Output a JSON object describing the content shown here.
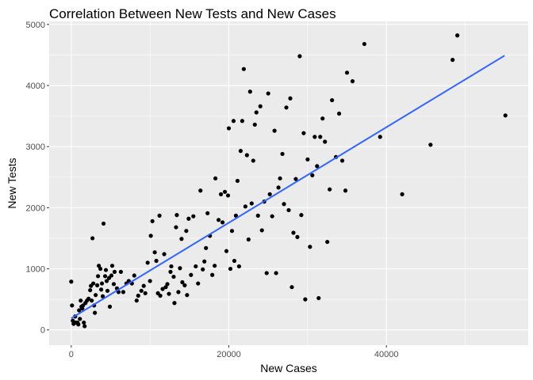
{
  "chart_data": {
    "type": "scatter",
    "title": "Correlation Between New Tests and New Cases",
    "xlabel": "New Cases",
    "ylabel": "New Tests",
    "xlim": [
      -2800,
      58000
    ],
    "ylim": [
      -250,
      5050
    ],
    "x_ticks": [
      0,
      20000,
      40000
    ],
    "x_tick_labels": [
      "0",
      "20000",
      "40000"
    ],
    "y_ticks": [
      0,
      1000,
      2000,
      3000,
      4000,
      5000
    ],
    "y_tick_labels": [
      "0",
      "1000",
      "2000",
      "3000",
      "4000",
      "5000"
    ],
    "background": "panel-grey",
    "grid": true,
    "colors": {
      "panel": "#ebebeb",
      "grid": "#ffffff",
      "points": "#000000",
      "trend": "#3366ff"
    },
    "trend_line": {
      "x": [
        0,
        55000
      ],
      "y": [
        190,
        4490
      ]
    },
    "points": [
      {
        "x": 0,
        "y": 790
      },
      {
        "x": 100,
        "y": 400
      },
      {
        "x": 200,
        "y": 150
      },
      {
        "x": 300,
        "y": 100
      },
      {
        "x": 500,
        "y": 220
      },
      {
        "x": 600,
        "y": 120
      },
      {
        "x": 800,
        "y": 120
      },
      {
        "x": 900,
        "y": 90
      },
      {
        "x": 1000,
        "y": 320
      },
      {
        "x": 1100,
        "y": 180
      },
      {
        "x": 1200,
        "y": 480
      },
      {
        "x": 1300,
        "y": 380
      },
      {
        "x": 1400,
        "y": 350
      },
      {
        "x": 1500,
        "y": 400
      },
      {
        "x": 1600,
        "y": 120
      },
      {
        "x": 1700,
        "y": 60
      },
      {
        "x": 1800,
        "y": 440
      },
      {
        "x": 2000,
        "y": 480
      },
      {
        "x": 2200,
        "y": 510
      },
      {
        "x": 2400,
        "y": 650
      },
      {
        "x": 2500,
        "y": 720
      },
      {
        "x": 2600,
        "y": 480
      },
      {
        "x": 2700,
        "y": 1500
      },
      {
        "x": 2800,
        "y": 760
      },
      {
        "x": 2900,
        "y": 400
      },
      {
        "x": 3000,
        "y": 280
      },
      {
        "x": 3100,
        "y": 570
      },
      {
        "x": 3300,
        "y": 730
      },
      {
        "x": 3400,
        "y": 880
      },
      {
        "x": 3500,
        "y": 1050
      },
      {
        "x": 3700,
        "y": 1000
      },
      {
        "x": 3800,
        "y": 660
      },
      {
        "x": 3900,
        "y": 760
      },
      {
        "x": 4000,
        "y": 550
      },
      {
        "x": 4100,
        "y": 1740
      },
      {
        "x": 4300,
        "y": 880
      },
      {
        "x": 4400,
        "y": 980
      },
      {
        "x": 4500,
        "y": 800
      },
      {
        "x": 4600,
        "y": 640
      },
      {
        "x": 4800,
        "y": 850
      },
      {
        "x": 4900,
        "y": 380
      },
      {
        "x": 5100,
        "y": 890
      },
      {
        "x": 5200,
        "y": 1050
      },
      {
        "x": 5400,
        "y": 750
      },
      {
        "x": 5500,
        "y": 950
      },
      {
        "x": 5800,
        "y": 680
      },
      {
        "x": 6000,
        "y": 620
      },
      {
        "x": 6300,
        "y": 950
      },
      {
        "x": 6600,
        "y": 620
      },
      {
        "x": 7000,
        "y": 760
      },
      {
        "x": 7300,
        "y": 800
      },
      {
        "x": 7700,
        "y": 760
      },
      {
        "x": 8000,
        "y": 890
      },
      {
        "x": 8300,
        "y": 480
      },
      {
        "x": 8500,
        "y": 560
      },
      {
        "x": 8900,
        "y": 640
      },
      {
        "x": 9200,
        "y": 720
      },
      {
        "x": 9400,
        "y": 600
      },
      {
        "x": 9700,
        "y": 1100
      },
      {
        "x": 10000,
        "y": 800
      },
      {
        "x": 10100,
        "y": 1540
      },
      {
        "x": 10300,
        "y": 1780
      },
      {
        "x": 10600,
        "y": 1270
      },
      {
        "x": 10800,
        "y": 1130
      },
      {
        "x": 11000,
        "y": 600
      },
      {
        "x": 11200,
        "y": 1870
      },
      {
        "x": 11300,
        "y": 560
      },
      {
        "x": 11600,
        "y": 670
      },
      {
        "x": 11800,
        "y": 1240
      },
      {
        "x": 12000,
        "y": 700
      },
      {
        "x": 12200,
        "y": 750
      },
      {
        "x": 12400,
        "y": 590
      },
      {
        "x": 12600,
        "y": 950
      },
      {
        "x": 12700,
        "y": 1040
      },
      {
        "x": 13000,
        "y": 870
      },
      {
        "x": 13100,
        "y": 440
      },
      {
        "x": 13300,
        "y": 1680
      },
      {
        "x": 13400,
        "y": 1880
      },
      {
        "x": 13600,
        "y": 620
      },
      {
        "x": 13800,
        "y": 1010
      },
      {
        "x": 14000,
        "y": 1490
      },
      {
        "x": 14100,
        "y": 780
      },
      {
        "x": 14400,
        "y": 730
      },
      {
        "x": 14600,
        "y": 1620
      },
      {
        "x": 14700,
        "y": 570
      },
      {
        "x": 14900,
        "y": 1820
      },
      {
        "x": 15200,
        "y": 900
      },
      {
        "x": 15500,
        "y": 1860
      },
      {
        "x": 15800,
        "y": 1040
      },
      {
        "x": 16100,
        "y": 760
      },
      {
        "x": 16400,
        "y": 2280
      },
      {
        "x": 16700,
        "y": 990
      },
      {
        "x": 16900,
        "y": 1120
      },
      {
        "x": 17100,
        "y": 1340
      },
      {
        "x": 17300,
        "y": 1910
      },
      {
        "x": 17600,
        "y": 1540
      },
      {
        "x": 17900,
        "y": 900
      },
      {
        "x": 18200,
        "y": 1050
      },
      {
        "x": 18300,
        "y": 2480
      },
      {
        "x": 18700,
        "y": 1800
      },
      {
        "x": 19000,
        "y": 2220
      },
      {
        "x": 19200,
        "y": 1760
      },
      {
        "x": 19500,
        "y": 2260
      },
      {
        "x": 19700,
        "y": 1290
      },
      {
        "x": 19900,
        "y": 2200
      },
      {
        "x": 20000,
        "y": 3300
      },
      {
        "x": 20200,
        "y": 1000
      },
      {
        "x": 20400,
        "y": 1620
      },
      {
        "x": 20600,
        "y": 3420
      },
      {
        "x": 20700,
        "y": 1130
      },
      {
        "x": 20900,
        "y": 1870
      },
      {
        "x": 21100,
        "y": 2440
      },
      {
        "x": 21300,
        "y": 1040
      },
      {
        "x": 21500,
        "y": 2930
      },
      {
        "x": 21700,
        "y": 3420
      },
      {
        "x": 21900,
        "y": 4270
      },
      {
        "x": 22100,
        "y": 2020
      },
      {
        "x": 22300,
        "y": 2860
      },
      {
        "x": 22500,
        "y": 1480
      },
      {
        "x": 22700,
        "y": 3900
      },
      {
        "x": 22900,
        "y": 2070
      },
      {
        "x": 23100,
        "y": 2770
      },
      {
        "x": 23300,
        "y": 3360
      },
      {
        "x": 23500,
        "y": 3560
      },
      {
        "x": 23700,
        "y": 1870
      },
      {
        "x": 24000,
        "y": 3660
      },
      {
        "x": 24200,
        "y": 1630
      },
      {
        "x": 24500,
        "y": 2100
      },
      {
        "x": 24800,
        "y": 930
      },
      {
        "x": 25000,
        "y": 3870
      },
      {
        "x": 25200,
        "y": 2220
      },
      {
        "x": 25500,
        "y": 1860
      },
      {
        "x": 25800,
        "y": 3260
      },
      {
        "x": 26000,
        "y": 930
      },
      {
        "x": 26300,
        "y": 2330
      },
      {
        "x": 26500,
        "y": 2480
      },
      {
        "x": 26800,
        "y": 2880
      },
      {
        "x": 27000,
        "y": 2060
      },
      {
        "x": 27300,
        "y": 3640
      },
      {
        "x": 27600,
        "y": 1960
      },
      {
        "x": 27800,
        "y": 3790
      },
      {
        "x": 28000,
        "y": 700
      },
      {
        "x": 28200,
        "y": 1590
      },
      {
        "x": 28500,
        "y": 2470
      },
      {
        "x": 28700,
        "y": 1520
      },
      {
        "x": 29000,
        "y": 4480
      },
      {
        "x": 29200,
        "y": 1880
      },
      {
        "x": 29500,
        "y": 3220
      },
      {
        "x": 29700,
        "y": 500
      },
      {
        "x": 30000,
        "y": 2790
      },
      {
        "x": 30300,
        "y": 1360
      },
      {
        "x": 30600,
        "y": 2530
      },
      {
        "x": 30900,
        "y": 3160
      },
      {
        "x": 31200,
        "y": 2680
      },
      {
        "x": 31400,
        "y": 520
      },
      {
        "x": 31600,
        "y": 3160
      },
      {
        "x": 31900,
        "y": 3460
      },
      {
        "x": 32200,
        "y": 3080
      },
      {
        "x": 32500,
        "y": 1440
      },
      {
        "x": 32800,
        "y": 2300
      },
      {
        "x": 33100,
        "y": 3760
      },
      {
        "x": 33600,
        "y": 2830
      },
      {
        "x": 34000,
        "y": 3540
      },
      {
        "x": 34400,
        "y": 2770
      },
      {
        "x": 34800,
        "y": 2280
      },
      {
        "x": 35000,
        "y": 4210
      },
      {
        "x": 35700,
        "y": 4070
      },
      {
        "x": 37200,
        "y": 4680
      },
      {
        "x": 39200,
        "y": 3160
      },
      {
        "x": 42000,
        "y": 2220
      },
      {
        "x": 45600,
        "y": 3030
      },
      {
        "x": 48400,
        "y": 4420
      },
      {
        "x": 49000,
        "y": 4820
      },
      {
        "x": 55100,
        "y": 3510
      }
    ]
  }
}
